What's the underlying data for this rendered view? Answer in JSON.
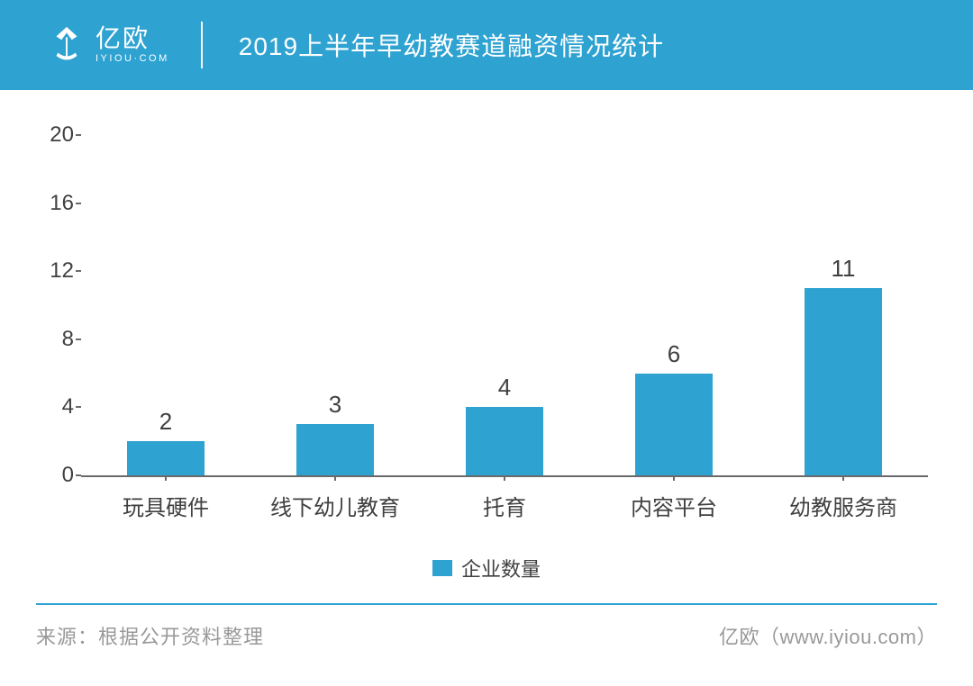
{
  "header": {
    "bg_color": "#2ea2d1",
    "logo_cn": "亿欧",
    "logo_en": "IYIOU·COM",
    "title": "2019上半年早幼教赛道融资情况统计"
  },
  "chart": {
    "type": "bar",
    "categories": [
      "玩具硬件",
      "线下幼儿教育",
      "托育",
      "内容平台",
      "幼教服务商"
    ],
    "values": [
      2,
      3,
      4,
      6,
      11
    ],
    "bar_color": "#2ea2d1",
    "ylim": [
      0,
      20
    ],
    "ytick_step": 4,
    "yticks": [
      0,
      4,
      8,
      12,
      16,
      20
    ],
    "bar_width_ratio": 0.46,
    "value_label_fontsize": 26,
    "tick_label_fontsize": 24,
    "axis_color": "#6a6a6a",
    "text_color": "#404040",
    "legend_label": "企业数量"
  },
  "footer": {
    "border_color": "#2ea2d1",
    "text_color": "#999999",
    "source_label": "来源：",
    "source_text": "根据公开资料整理",
    "brand": "亿欧",
    "url": "（www.iyiou.com）"
  }
}
